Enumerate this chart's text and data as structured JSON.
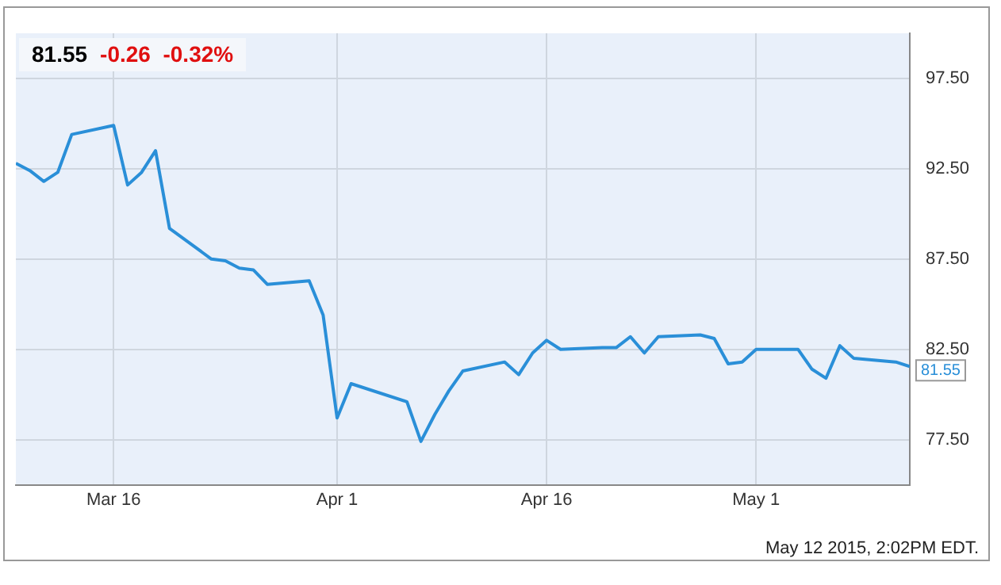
{
  "chart_data": {
    "type": "line",
    "title": "81.55",
    "subtitle": "-0.26  -0.32%",
    "x": [
      "2015-03-09",
      "2015-03-10",
      "2015-03-11",
      "2015-03-12",
      "2015-03-13",
      "2015-03-16",
      "2015-03-17",
      "2015-03-18",
      "2015-03-19",
      "2015-03-20",
      "2015-03-23",
      "2015-03-24",
      "2015-03-25",
      "2015-03-26",
      "2015-03-27",
      "2015-03-30",
      "2015-03-31",
      "2015-04-01",
      "2015-04-02",
      "2015-04-06",
      "2015-04-07",
      "2015-04-08",
      "2015-04-09",
      "2015-04-10",
      "2015-04-13",
      "2015-04-14",
      "2015-04-15",
      "2015-04-16",
      "2015-04-17",
      "2015-04-20",
      "2015-04-21",
      "2015-04-22",
      "2015-04-23",
      "2015-04-24",
      "2015-04-27",
      "2015-04-28",
      "2015-04-29",
      "2015-04-30",
      "2015-05-01",
      "2015-05-04",
      "2015-05-05",
      "2015-05-06",
      "2015-05-07",
      "2015-05-08",
      "2015-05-11",
      "2015-05-12"
    ],
    "series": [
      {
        "color": "#2a8fd8",
        "values": [
          92.8,
          92.4,
          91.8,
          92.3,
          94.4,
          94.9,
          91.6,
          92.3,
          93.5,
          89.2,
          87.5,
          87.4,
          87.0,
          86.9,
          86.1,
          86.3,
          84.4,
          78.7,
          80.6,
          79.6,
          77.4,
          78.9,
          80.2,
          81.3,
          81.8,
          81.1,
          82.3,
          83.0,
          82.5,
          82.6,
          82.6,
          83.2,
          82.3,
          83.2,
          83.3,
          83.1,
          81.7,
          81.8,
          82.5,
          82.5,
          81.4,
          80.9,
          82.7,
          82.0,
          81.8,
          81.55
        ]
      }
    ],
    "xlim": [
      "2015-03-09",
      "2015-05-12"
    ],
    "xticks": [
      {
        "value": "2015-03-16",
        "label": "Mar 16"
      },
      {
        "value": "2015-04-01",
        "label": "Apr 1"
      },
      {
        "value": "2015-04-16",
        "label": "Apr 16"
      },
      {
        "value": "2015-05-01",
        "label": "May 1"
      }
    ],
    "ylim": [
      75,
      100
    ],
    "yticks": [
      {
        "value": 77.5,
        "label": "77.50"
      },
      {
        "value": 82.5,
        "label": "82.50"
      },
      {
        "value": 87.5,
        "label": "87.50"
      },
      {
        "value": 92.5,
        "label": "92.50"
      },
      {
        "value": 97.5,
        "label": "97.50"
      }
    ],
    "grid": true,
    "legend": false,
    "marker": "none",
    "line_style": "solid",
    "annotations": [
      {
        "text": "81.55",
        "x": "2015-05-12",
        "y": 81.55
      },
      "May 12 2015, 2:02PM EDT."
    ]
  }
}
